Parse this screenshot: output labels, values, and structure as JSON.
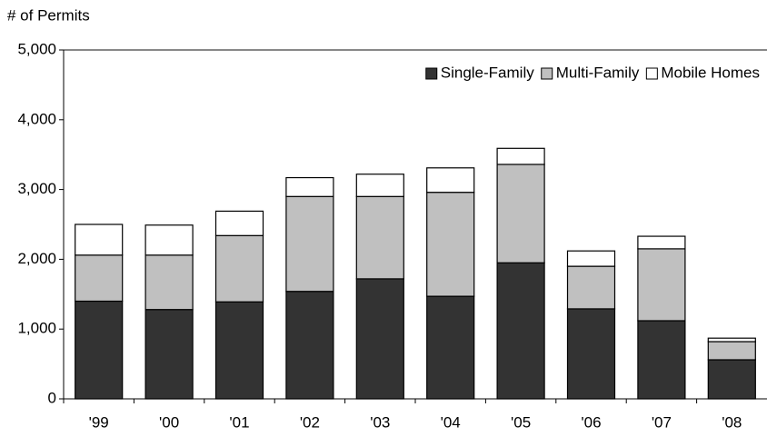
{
  "chart_data": {
    "type": "stacked_bar",
    "y_label": "# of Permits",
    "categories": [
      "'99",
      "'00",
      "'01",
      "'02",
      "'03",
      "'04",
      "'05",
      "'06",
      "'07",
      "'08"
    ],
    "series": [
      {
        "name": "Single-Family",
        "color": "#333333",
        "values": [
          1400,
          1280,
          1390,
          1540,
          1720,
          1470,
          1950,
          1290,
          1120,
          560
        ]
      },
      {
        "name": "Multi-Family",
        "color": "#c0c0c0",
        "values": [
          660,
          780,
          950,
          1360,
          1180,
          1490,
          1410,
          610,
          1030,
          260
        ]
      },
      {
        "name": "Mobile Homes",
        "color": "#ffffff",
        "values": [
          440,
          430,
          350,
          270,
          320,
          350,
          230,
          220,
          180,
          50
        ]
      }
    ],
    "ylim": [
      0,
      5000
    ],
    "yticks": [
      0,
      {
        "value": 1000,
        "label": "1,000"
      },
      {
        "value": 2000,
        "label": "2,000"
      },
      {
        "value": 3000,
        "label": "3,000"
      },
      {
        "value": 4000,
        "label": "4,000"
      },
      {
        "value": 5000,
        "label": "5,000"
      }
    ],
    "legend": "top-right"
  }
}
